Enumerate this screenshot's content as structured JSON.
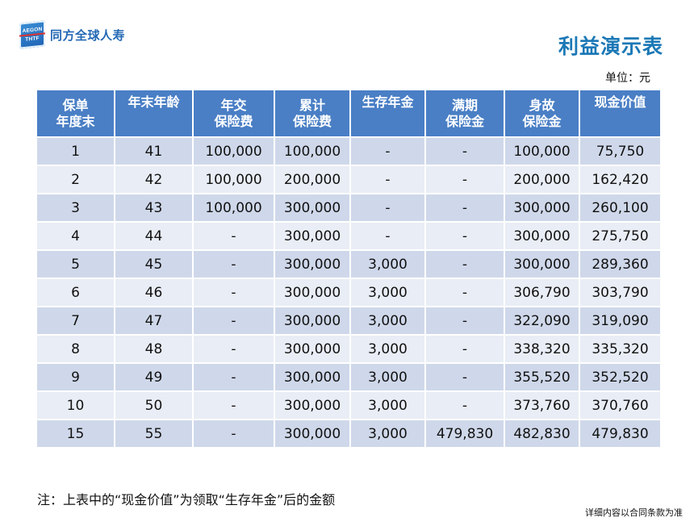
{
  "logo": {
    "line1": "AEGON",
    "line2": "THTF",
    "text": "同方全球人寿"
  },
  "title": "利益演示表",
  "unit": "单位：元",
  "table": {
    "headers": [
      [
        "保单",
        "年度末"
      ],
      [
        "年末年龄"
      ],
      [
        "年交",
        "保险费"
      ],
      [
        "累计",
        "保险费"
      ],
      [
        "生存年金"
      ],
      [
        "满期",
        "保险金"
      ],
      [
        "身故",
        "保险金"
      ],
      [
        "现金价值"
      ]
    ],
    "rows": [
      [
        "1",
        "41",
        "100,000",
        "100,000",
        "-",
        "-",
        "100,000",
        "75,750"
      ],
      [
        "2",
        "42",
        "100,000",
        "200,000",
        "-",
        "-",
        "200,000",
        "162,420"
      ],
      [
        "3",
        "43",
        "100,000",
        "300,000",
        "-",
        "-",
        "300,000",
        "260,100"
      ],
      [
        "4",
        "44",
        "-",
        "300,000",
        "-",
        "-",
        "300,000",
        "275,750"
      ],
      [
        "5",
        "45",
        "-",
        "300,000",
        "3,000",
        "-",
        "300,000",
        "289,360"
      ],
      [
        "6",
        "46",
        "-",
        "300,000",
        "3,000",
        "-",
        "306,790",
        "303,790"
      ],
      [
        "7",
        "47",
        "-",
        "300,000",
        "3,000",
        "-",
        "322,090",
        "319,090"
      ],
      [
        "8",
        "48",
        "-",
        "300,000",
        "3,000",
        "-",
        "338,320",
        "335,320"
      ],
      [
        "9",
        "49",
        "-",
        "300,000",
        "3,000",
        "-",
        "355,520",
        "352,520"
      ],
      [
        "10",
        "50",
        "-",
        "300,000",
        "3,000",
        "-",
        "373,760",
        "370,760"
      ],
      [
        "15",
        "55",
        "-",
        "300,000",
        "3,000",
        "479,830",
        "482,830",
        "479,830"
      ]
    ]
  },
  "note": "注：上表中的“现金价值”为领取“生存年金”后的金额",
  "footnote": "详细内容以合同条款为准",
  "colors": {
    "header_bg": "#4a7fc5",
    "row_odd": "#cfd8ea",
    "row_even": "#e9edf5",
    "title": "#1b78b6"
  }
}
